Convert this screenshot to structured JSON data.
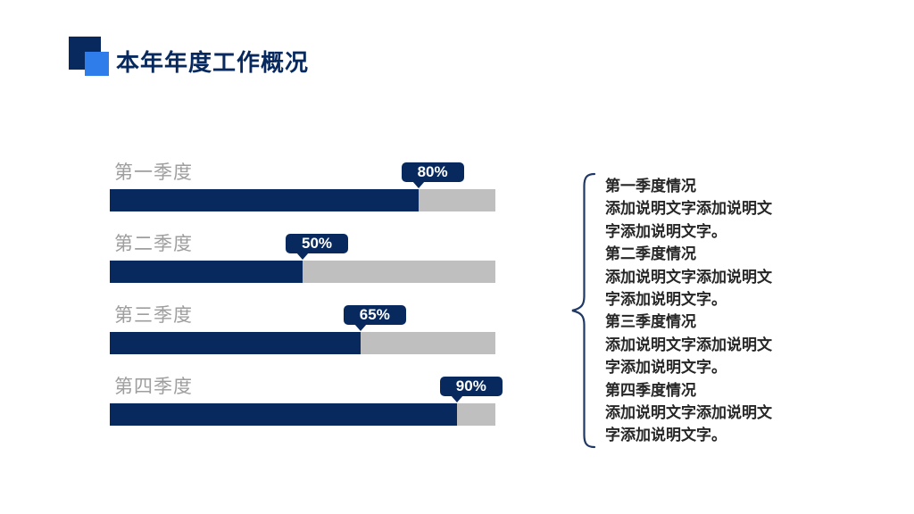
{
  "header": {
    "title": "本年年度工作概况"
  },
  "colors": {
    "navy": "#07295E",
    "accent_blue": "#2F7CEB",
    "track_gray": "#BFBFBF",
    "label_gray": "#9E9E9E",
    "text_dark": "#262626",
    "brace": "#1F3864",
    "background": "#FFFFFF"
  },
  "chart_data": {
    "type": "bar",
    "orientation": "horizontal",
    "categories": [
      "第一季度",
      "第二季度",
      "第三季度",
      "第四季度"
    ],
    "values": [
      80,
      50,
      65,
      90
    ],
    "value_labels": [
      "80%",
      "50%",
      "65%",
      "90%"
    ],
    "xlim": [
      0,
      100
    ],
    "grid": false,
    "legend": false,
    "bar_color": "#07295E",
    "track_color": "#BFBFBF",
    "value_label_style": "navy-bubble-with-down-arrow"
  },
  "notes": [
    {
      "title": "第一季度情况",
      "body": "添加说明文字添加说明文字添加说明文字。"
    },
    {
      "title": "第二季度情况",
      "body": "添加说明文字添加说明文字添加说明文字。"
    },
    {
      "title": "第三季度情况",
      "body": "添加说明文字添加说明文字添加说明文字。"
    },
    {
      "title": "第四季度情况",
      "body": "添加说明文字添加说明文字添加说明文字。"
    }
  ]
}
